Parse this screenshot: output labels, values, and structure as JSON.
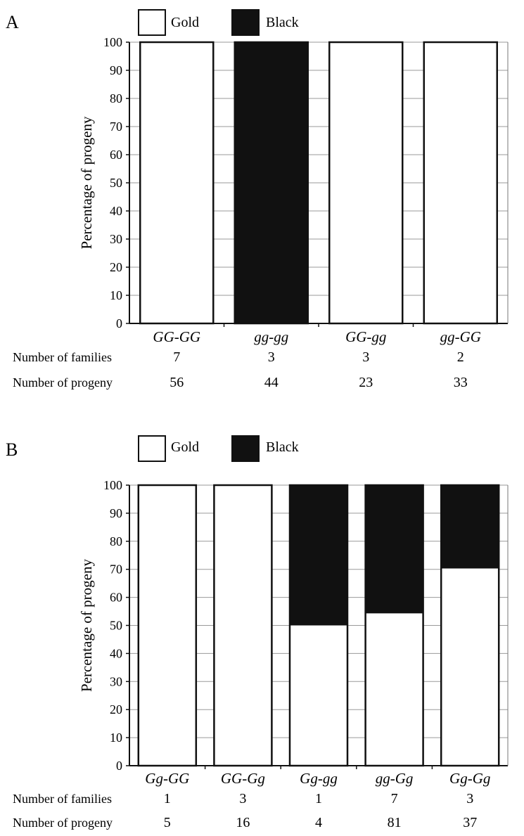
{
  "chart_data": [
    {
      "type": "bar",
      "stacked": true,
      "panel_label": "A",
      "ylabel": "Percentage of progeny",
      "ylim": [
        0,
        100
      ],
      "yticks": [
        0,
        10,
        20,
        30,
        40,
        50,
        60,
        70,
        80,
        90,
        100
      ],
      "grid": true,
      "legend": {
        "placement": "top",
        "entries": [
          "Gold",
          "Black"
        ]
      },
      "categories": [
        "GG-GG",
        "gg-gg",
        "GG-gg",
        "gg-GG"
      ],
      "series": [
        {
          "name": "Gold",
          "color": "#ffffff",
          "values": [
            100,
            0,
            100,
            100
          ]
        },
        {
          "name": "Black",
          "color": "#111111",
          "values": [
            0,
            100,
            0,
            0
          ]
        }
      ],
      "table": {
        "families_label": "Number of families",
        "families": [
          7,
          3,
          3,
          2
        ],
        "progeny_label": "Number of progeny",
        "progeny": [
          56,
          44,
          23,
          33
        ]
      }
    },
    {
      "type": "bar",
      "stacked": true,
      "panel_label": "B",
      "ylabel": "Percentage of progeny",
      "ylim": [
        0,
        100
      ],
      "yticks": [
        0,
        10,
        20,
        30,
        40,
        50,
        60,
        70,
        80,
        90,
        100
      ],
      "grid": true,
      "legend": {
        "placement": "top",
        "entries": [
          "Gold",
          "Black"
        ]
      },
      "categories": [
        "Gg-GG",
        "GG-Gg",
        "Gg-gg",
        "gg-Gg",
        "Gg-Gg"
      ],
      "series": [
        {
          "name": "Gold",
          "color": "#ffffff",
          "values": [
            100,
            100,
            50,
            54.3,
            70.3
          ]
        },
        {
          "name": "Black",
          "color": "#111111",
          "values": [
            0,
            0,
            50,
            45.7,
            29.7
          ]
        }
      ],
      "table": {
        "families_label": "Number of families",
        "families": [
          1,
          3,
          1,
          7,
          3
        ],
        "progeny_label": "Number of progeny",
        "progeny": [
          5,
          16,
          4,
          81,
          37
        ]
      }
    }
  ]
}
